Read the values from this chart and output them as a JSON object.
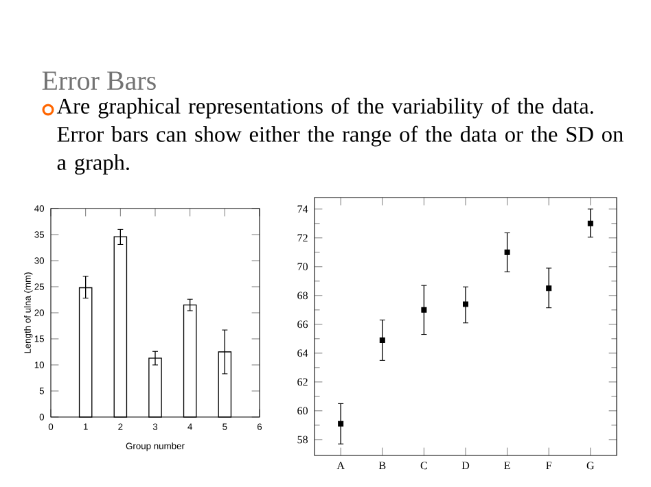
{
  "chart_data": [
    {
      "type": "bar",
      "title": "Error Bars",
      "subtitle": "Are graphical representations of the variability of the data. Error bars can show either the range of the data or the SD on a graph.",
      "xlabel": "Group number",
      "ylabel": "Length of ulna (mm)",
      "x": [
        1,
        2,
        3,
        4,
        5
      ],
      "values": [
        24.8,
        34.6,
        11.3,
        21.5,
        12.5
      ],
      "errors": [
        [
          22.8,
          27.0
        ],
        [
          33.1,
          36.0
        ],
        [
          10.0,
          12.6
        ],
        [
          20.4,
          22.6
        ],
        [
          8.3,
          16.7
        ]
      ],
      "color": "#ffffff",
      "xlim": [
        0,
        6
      ],
      "xticks": [
        0,
        1,
        2,
        3,
        4,
        5,
        6
      ],
      "ylim": [
        0,
        40
      ],
      "yticks": [
        0,
        5,
        10,
        15,
        20,
        25,
        30,
        35,
        40
      ]
    },
    {
      "type": "scatter",
      "categories": [
        "A",
        "B",
        "C",
        "D",
        "E",
        "F",
        "G"
      ],
      "values": [
        59.1,
        64.9,
        67.0,
        67.4,
        71.0,
        68.5,
        73.0
      ],
      "errors": [
        [
          57.7,
          60.5
        ],
        [
          63.5,
          66.3
        ],
        [
          65.3,
          68.7
        ],
        [
          66.1,
          68.6
        ],
        [
          69.65,
          72.35
        ],
        [
          67.15,
          69.9
        ],
        [
          72.05,
          74.0
        ]
      ],
      "color": "#000000",
      "marker": "square",
      "ylim": [
        56.9,
        74.8
      ],
      "yticks": [
        58,
        60,
        62,
        64,
        66,
        68,
        70,
        72,
        74
      ]
    }
  ]
}
